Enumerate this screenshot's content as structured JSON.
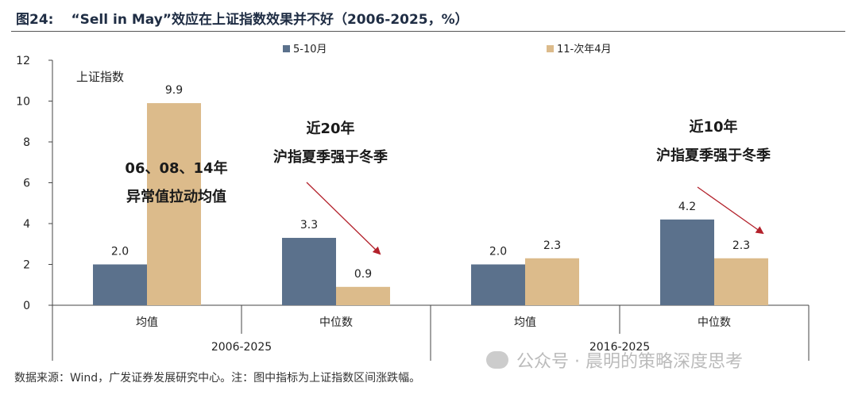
{
  "header": {
    "figure_label": "图24:",
    "title": "“Sell in May”效应在上证指数效果并不好（2006-2025，%）"
  },
  "chart_data": {
    "type": "bar",
    "ylabel": "上证指数",
    "ylim": [
      0,
      12
    ],
    "yticks": [
      0,
      2,
      4,
      6,
      8,
      10,
      12
    ],
    "grid": false,
    "legend_position": "top",
    "categories": [
      "均值",
      "中位数",
      "均值",
      "中位数"
    ],
    "groups": [
      {
        "label": "2006-2025",
        "categories": [
          0,
          1
        ]
      },
      {
        "label": "2016-2025",
        "categories": [
          2,
          3
        ]
      }
    ],
    "series": [
      {
        "name": "5-10月",
        "color": "#5b718c",
        "values": [
          2.0,
          3.3,
          2.0,
          4.2
        ]
      },
      {
        "name": "11-次年4月",
        "color": "#dcbb8b",
        "values": [
          9.9,
          0.9,
          2.3,
          2.3
        ]
      }
    ],
    "annotations": [
      {
        "lines": [
          "06、08、14年",
          "异常值拉动均值"
        ]
      },
      {
        "lines": [
          "近20年",
          "沪指夏季强于冬季"
        ]
      },
      {
        "lines": [
          "近10年",
          "沪指夏季强于冬季"
        ]
      }
    ],
    "arrow_color": "#b3212b"
  },
  "footer": {
    "source": "数据来源：Wind，广发证券发展研究中心。注：图中指标为上证指数区间涨跌幅。",
    "watermark": "公众号 · 晨明的策略深度思考"
  }
}
